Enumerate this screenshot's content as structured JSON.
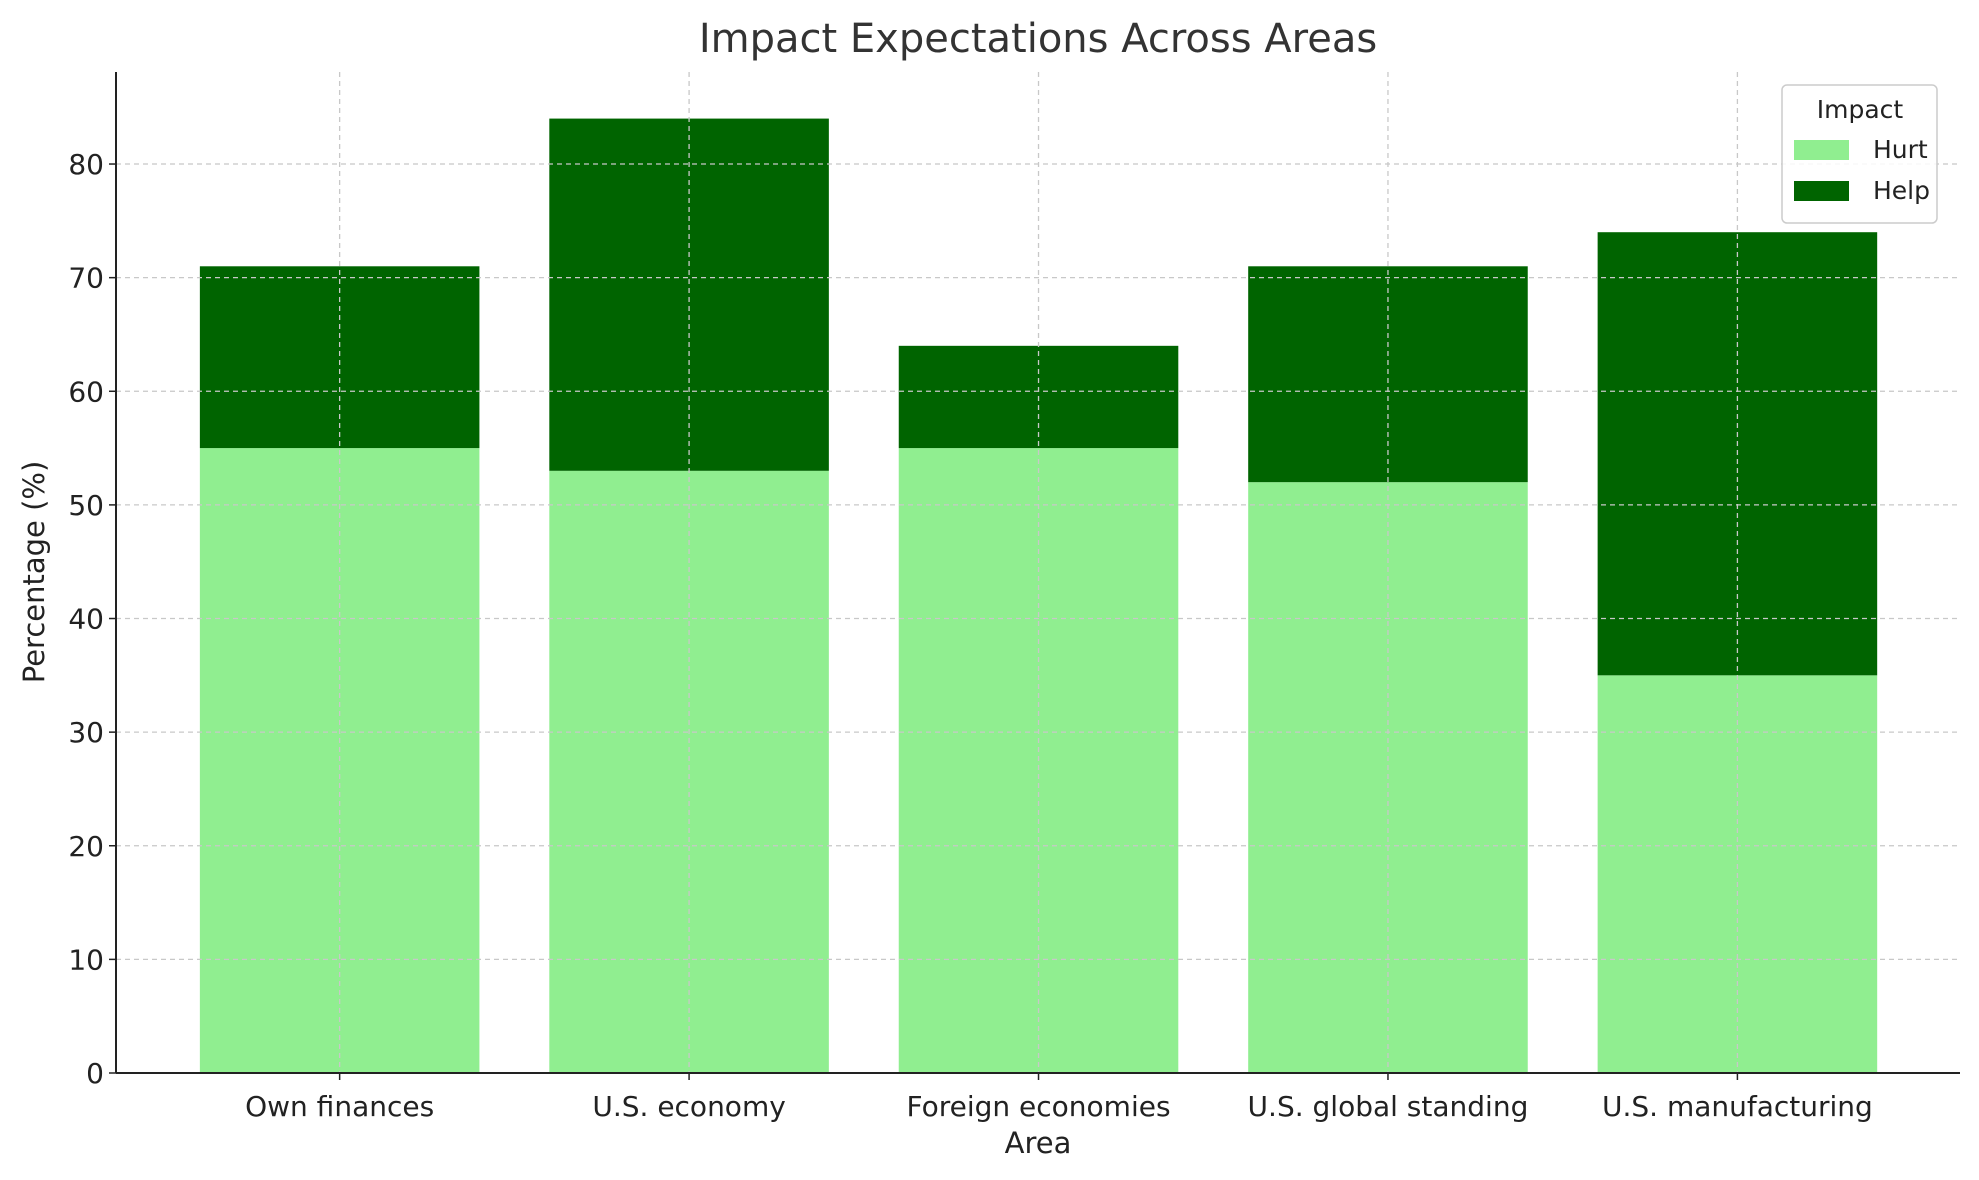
{
  "chart_data": {
    "type": "bar",
    "stacked": true,
    "title": "Impact Expectations Across Areas",
    "xlabel": "Area",
    "ylabel": "Percentage (%)",
    "categories": [
      "Own finances",
      "U.S. economy",
      "Foreign economies",
      "U.S. global standing",
      "U.S. manufacturing"
    ],
    "series": [
      {
        "name": "Hurt",
        "values": [
          55,
          53,
          55,
          52,
          35
        ],
        "color": "#90ee90"
      },
      {
        "name": "Help",
        "values": [
          16,
          31,
          9,
          19,
          39
        ],
        "color": "#006400"
      }
    ],
    "ylim": [
      0,
      88.1
    ],
    "yticks": [
      0,
      10,
      20,
      30,
      40,
      50,
      60,
      70,
      80
    ],
    "grid": true,
    "legend": {
      "title": "Impact",
      "placement": "top-right"
    }
  }
}
